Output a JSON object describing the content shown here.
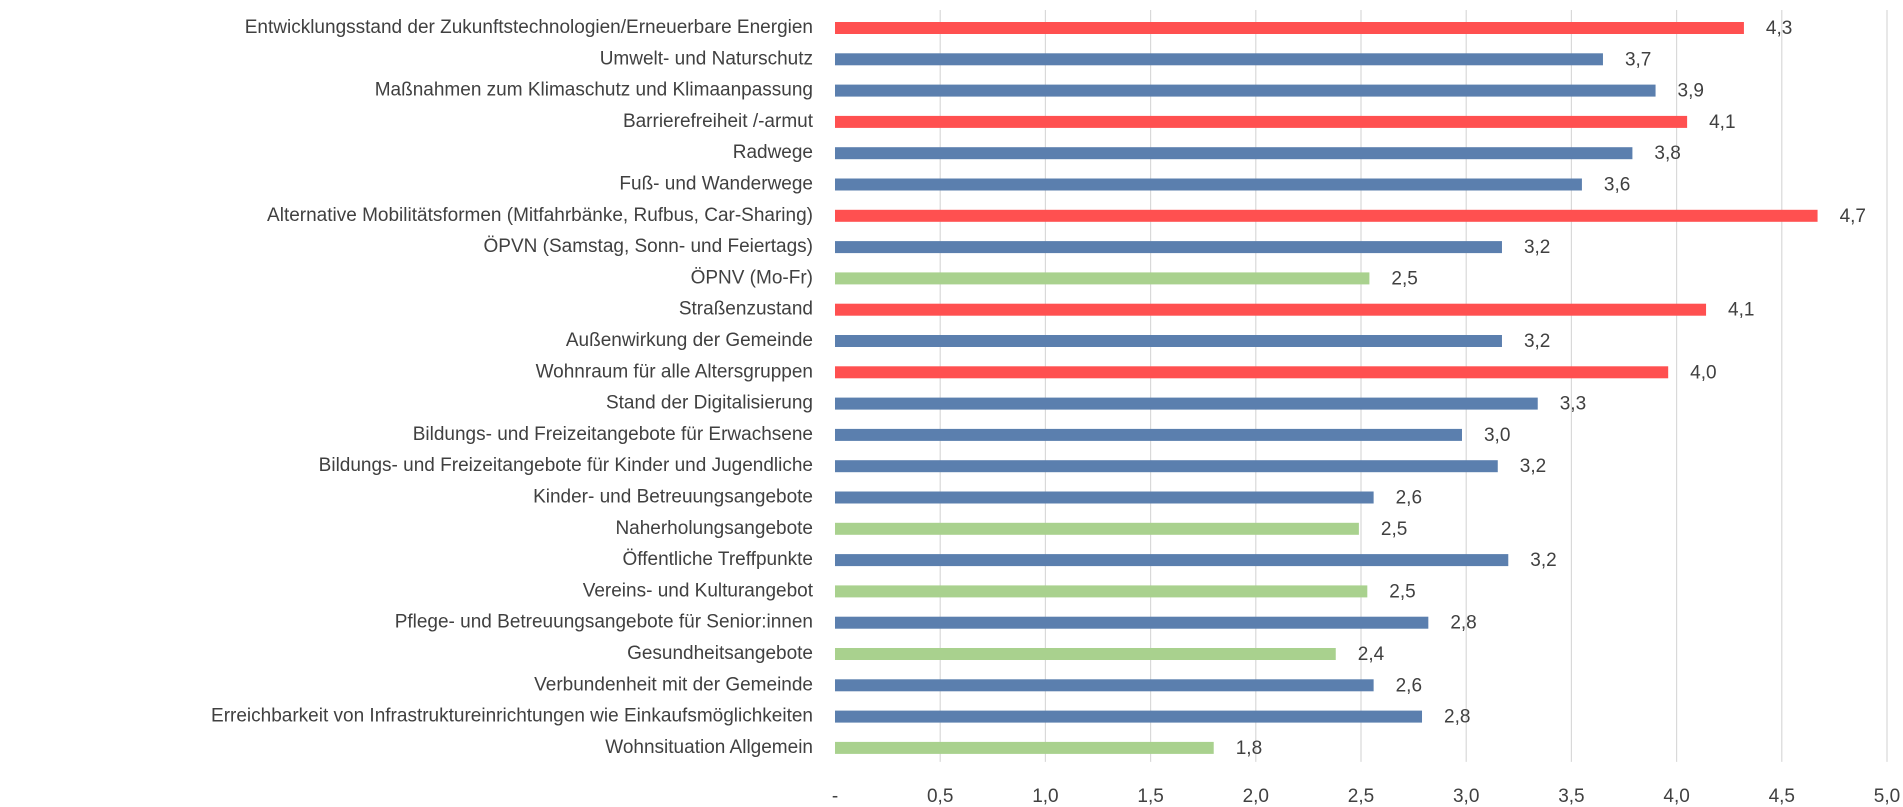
{
  "chart_data": {
    "type": "bar",
    "orientation": "horizontal",
    "categories": [
      "Entwicklungsstand der Zukunftstechnologien/Erneuerbare Energien",
      "Umwelt- und Naturschutz",
      "Maßnahmen zum Klimaschutz und Klimaanpassung",
      "Barrierefreiheit /-armut",
      "Radwege",
      "Fuß- und Wanderwege",
      "Alternative Mobilitätsformen (Mitfahrbänke, Rufbus, Car-Sharing)",
      "ÖPVN (Samstag, Sonn- und Feiertags)",
      "ÖPNV (Mo-Fr)",
      "Straßenzustand",
      "Außenwirkung der Gemeinde",
      "Wohnraum für alle Altersgruppen",
      "Stand der Digitalisierung",
      "Bildungs- und Freizeitangebote für Erwachsene",
      "Bildungs- und Freizeitangebote für Kinder und Jugendliche",
      "Kinder- und Betreuungsangebote",
      "Naherholungsangebote",
      "Öffentliche Treffpunkte",
      "Vereins- und Kulturangebot",
      "Pflege- und Betreuungsangebote für Senior:innen",
      "Gesundheitsangebote",
      "Verbundenheit mit der Gemeinde",
      "Erreichbarkeit von Infrastruktureinrichtungen wie Einkaufsmöglichkeiten",
      "Wohnsituation Allgemein"
    ],
    "values": [
      4.32,
      3.65,
      3.9,
      4.05,
      3.79,
      3.55,
      4.67,
      3.17,
      2.54,
      4.14,
      3.17,
      3.96,
      3.34,
      2.98,
      3.15,
      2.56,
      2.49,
      3.2,
      2.53,
      2.82,
      2.38,
      2.56,
      2.79,
      1.8
    ],
    "value_labels": [
      "4,3",
      "3,7",
      "3,9",
      "4,1",
      "3,8",
      "3,6",
      "4,7",
      "3,2",
      "2,5",
      "4,1",
      "3,2",
      "4,0",
      "3,3",
      "3,0",
      "3,2",
      "2,6",
      "2,5",
      "3,2",
      "2,5",
      "2,8",
      "2,4",
      "2,6",
      "2,8",
      "1,8"
    ],
    "colors": [
      "#ff5050",
      "#5b7fae",
      "#5b7fae",
      "#ff5050",
      "#5b7fae",
      "#5b7fae",
      "#ff5050",
      "#5b7fae",
      "#a9d18e",
      "#ff5050",
      "#5b7fae",
      "#ff5050",
      "#5b7fae",
      "#5b7fae",
      "#5b7fae",
      "#5b7fae",
      "#a9d18e",
      "#5b7fae",
      "#a9d18e",
      "#5b7fae",
      "#a9d18e",
      "#5b7fae",
      "#5b7fae",
      "#a9d18e"
    ],
    "xlim": [
      0,
      5
    ],
    "xticks": [
      {
        "value": 0,
        "label": "-"
      },
      {
        "value": 0.5,
        "label": "0,5"
      },
      {
        "value": 1,
        "label": "1,0"
      },
      {
        "value": 1.5,
        "label": "1,5"
      },
      {
        "value": 2,
        "label": "2,0"
      },
      {
        "value": 2.5,
        "label": "2,5"
      },
      {
        "value": 3,
        "label": "3,0"
      },
      {
        "value": 3.5,
        "label": "3,5"
      },
      {
        "value": 4,
        "label": "4,0"
      },
      {
        "value": 4.5,
        "label": "4,5"
      },
      {
        "value": 5,
        "label": "5,0"
      }
    ],
    "grid": true
  }
}
